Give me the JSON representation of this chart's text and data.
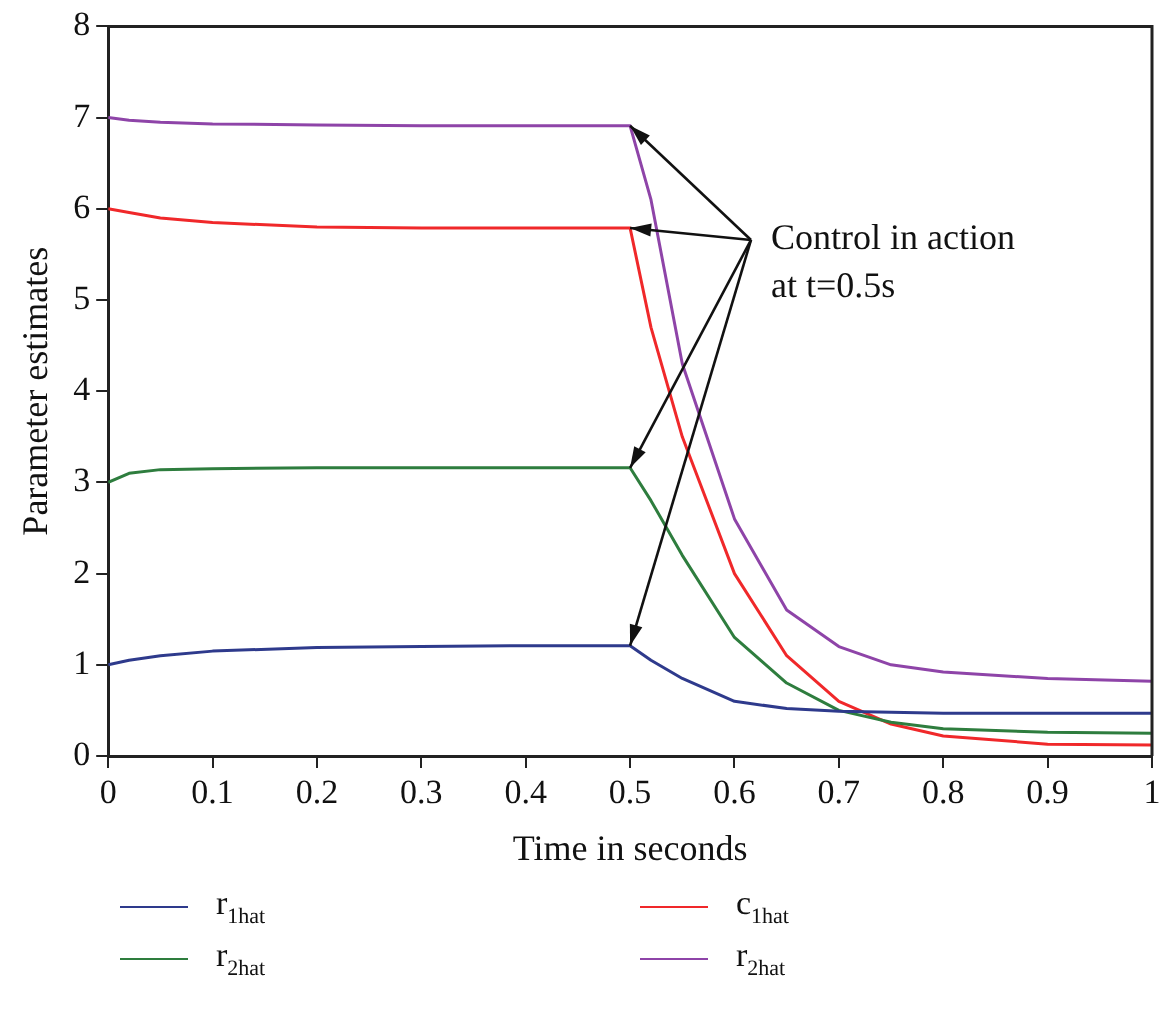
{
  "chart_data": {
    "type": "line",
    "xlabel": "Time in seconds",
    "ylabel": "Parameter estimates",
    "x": [
      0,
      0.02,
      0.05,
      0.1,
      0.2,
      0.3,
      0.4,
      0.5,
      0.52,
      0.55,
      0.6,
      0.65,
      0.7,
      0.75,
      0.8,
      0.9,
      1.0
    ],
    "series": [
      {
        "name": "r$_{1hat}$",
        "color": "#2e3a8c",
        "values": [
          1.0,
          1.05,
          1.1,
          1.15,
          1.19,
          1.2,
          1.21,
          1.21,
          1.05,
          0.85,
          0.6,
          0.52,
          0.49,
          0.48,
          0.47,
          0.47,
          0.47
        ]
      },
      {
        "name": "r$_{2hat}$",
        "color": "#2e7d3e",
        "values": [
          3.0,
          3.1,
          3.14,
          3.15,
          3.16,
          3.16,
          3.16,
          3.16,
          2.8,
          2.2,
          1.3,
          0.8,
          0.5,
          0.37,
          0.3,
          0.26,
          0.25
        ]
      },
      {
        "name": "c$_{1hat}$",
        "color": "#f0282a",
        "values": [
          6.0,
          5.96,
          5.9,
          5.85,
          5.8,
          5.79,
          5.79,
          5.79,
          4.7,
          3.5,
          2.0,
          1.1,
          0.6,
          0.35,
          0.22,
          0.13,
          0.12
        ]
      },
      {
        "name": "r$_{2hat}$",
        "color": "#8e44a8",
        "values": [
          7.0,
          6.97,
          6.95,
          6.93,
          6.92,
          6.91,
          6.91,
          6.91,
          6.1,
          4.3,
          2.6,
          1.6,
          1.2,
          1.0,
          0.92,
          0.85,
          0.82
        ]
      }
    ],
    "xlim": [
      0,
      1
    ],
    "xticks": [
      0,
      0.1,
      0.2,
      0.3,
      0.4,
      0.5,
      0.6,
      0.7,
      0.8,
      0.9,
      1
    ],
    "ylim": [
      0,
      8
    ],
    "yticks": [
      0,
      1,
      2,
      3,
      4,
      5,
      6,
      7,
      8
    ],
    "grid": false,
    "legend": "bottom",
    "marker": "none",
    "line_style": "solid",
    "annotations": [
      {
        "text": "Control in action at t=0.5s",
        "x": 0.5,
        "y": 5.79
      }
    ]
  }
}
